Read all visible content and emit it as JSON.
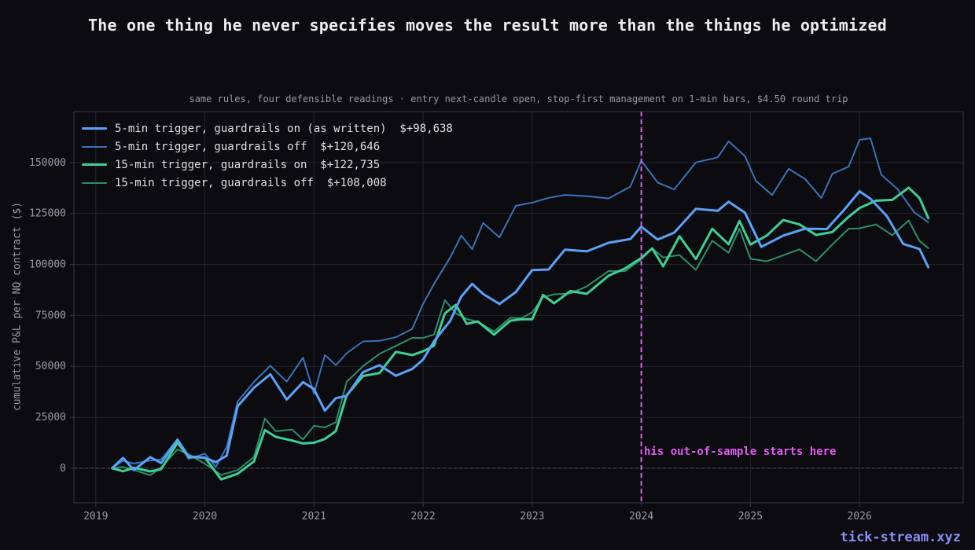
{
  "title": "The one thing he never specifies moves the result more than the things he optimized",
  "watermark": "tick-stream.xyz",
  "colors": {
    "background": "#0b0b10",
    "grid": "#24242c",
    "axis": "#3a3a44",
    "tick_text": "#9a9aa6",
    "annotation": "#e25cf2",
    "zero_line": "#4a4a55"
  },
  "chart_data": {
    "type": "line",
    "title": "The one thing he never specifies moves the result more than the things he optimized",
    "subtitle": "same rules, four defensible readings · entry next-candle open, stop-first management on 1-min bars, $4.50 round trip",
    "xlabel": "",
    "ylabel": "cumulative P&L per NQ contract ($)",
    "xlim": [
      2018.8,
      2026.95
    ],
    "ylim": [
      -17000,
      175000
    ],
    "x_ticks": [
      "2019",
      "2020",
      "2021",
      "2022",
      "2023",
      "2024",
      "2025",
      "2026"
    ],
    "x_tick_values": [
      2019,
      2020,
      2021,
      2022,
      2023,
      2024,
      2025,
      2026
    ],
    "y_ticks": [
      "0",
      "25000",
      "50000",
      "75000",
      "100000",
      "125000",
      "150000"
    ],
    "y_tick_values": [
      0,
      25000,
      50000,
      75000,
      100000,
      125000,
      150000
    ],
    "grid": true,
    "legend_position": "top-left",
    "annotation": {
      "x": 2024.0,
      "text": "his out-of-sample starts here",
      "color": "#e25cf2"
    },
    "series": [
      {
        "name": "5-min trigger, guardrails on (as written)  $+98,638",
        "color": "#5aa2f8",
        "width": 3,
        "x": [
          2019.15,
          2019.25,
          2019.35,
          2019.5,
          2019.6,
          2019.75,
          2019.85,
          2020.0,
          2020.1,
          2020.2,
          2020.3,
          2020.45,
          2020.6,
          2020.75,
          2020.9,
          2021.0,
          2021.1,
          2021.2,
          2021.3,
          2021.45,
          2021.6,
          2021.75,
          2021.9,
          2022.0,
          2022.1,
          2022.25,
          2022.35,
          2022.45,
          2022.55,
          2022.7,
          2022.85,
          2023.0,
          2023.15,
          2023.3,
          2023.5,
          2023.7,
          2023.9,
          2024.0,
          2024.15,
          2024.3,
          2024.5,
          2024.7,
          2024.8,
          2024.95,
          2025.1,
          2025.3,
          2025.5,
          2025.7,
          2025.85,
          2026.0,
          2026.1,
          2026.25,
          2026.4,
          2026.55,
          2026.63
        ],
        "values": [
          0,
          4000,
          1000,
          3000,
          5000,
          12000,
          7000,
          5000,
          2000,
          8000,
          28000,
          42000,
          44000,
          35000,
          42000,
          38000,
          30000,
          32000,
          38000,
          45000,
          52000,
          45000,
          48000,
          55000,
          60000,
          75000,
          82000,
          92000,
          85000,
          80000,
          88000,
          95000,
          100000,
          105000,
          108000,
          110000,
          112000,
          120000,
          110000,
          118000,
          125000,
          128000,
          130000,
          125000,
          110000,
          112000,
          120000,
          115000,
          128000,
          135000,
          132000,
          125000,
          108000,
          110000,
          98638
        ]
      },
      {
        "name": "5-min trigger, guardrails off  $+120,646",
        "color": "#3a73b8",
        "width": 2,
        "x": [
          2019.15,
          2019.25,
          2019.35,
          2019.5,
          2019.6,
          2019.75,
          2019.85,
          2020.0,
          2020.1,
          2020.2,
          2020.3,
          2020.45,
          2020.6,
          2020.75,
          2020.9,
          2021.0,
          2021.1,
          2021.2,
          2021.3,
          2021.45,
          2021.6,
          2021.75,
          2021.9,
          2022.0,
          2022.1,
          2022.25,
          2022.35,
          2022.45,
          2022.55,
          2022.7,
          2022.85,
          2023.0,
          2023.15,
          2023.3,
          2023.5,
          2023.7,
          2023.9,
          2024.0,
          2024.15,
          2024.3,
          2024.5,
          2024.7,
          2024.8,
          2024.95,
          2025.05,
          2025.2,
          2025.35,
          2025.5,
          2025.65,
          2025.75,
          2025.9,
          2026.0,
          2026.1,
          2026.2,
          2026.35,
          2026.5,
          2026.63
        ],
        "values": [
          0,
          5000,
          2000,
          3000,
          6000,
          12000,
          7000,
          5000,
          2000,
          10000,
          32000,
          44000,
          48000,
          45000,
          52000,
          38000,
          55000,
          50000,
          58000,
          60000,
          65000,
          62000,
          70000,
          80000,
          90000,
          105000,
          112000,
          110000,
          118000,
          115000,
          128000,
          130000,
          134000,
          132000,
          136000,
          130000,
          140000,
          150000,
          140000,
          138000,
          148000,
          155000,
          158000,
          155000,
          140000,
          134000,
          148000,
          140000,
          135000,
          142000,
          150000,
          160000,
          162000,
          145000,
          135000,
          128000,
          120646
        ]
      },
      {
        "name": "15-min trigger, guardrails on  $+122,735",
        "color": "#3ecf94",
        "width": 3,
        "x": [
          2019.15,
          2019.25,
          2019.35,
          2019.5,
          2019.6,
          2019.75,
          2019.85,
          2020.0,
          2020.15,
          2020.3,
          2020.45,
          2020.55,
          2020.65,
          2020.8,
          2020.9,
          2021.0,
          2021.1,
          2021.2,
          2021.3,
          2021.45,
          2021.6,
          2021.75,
          2021.9,
          2022.0,
          2022.1,
          2022.2,
          2022.3,
          2022.4,
          2022.5,
          2022.65,
          2022.8,
          2022.9,
          2023.0,
          2023.1,
          2023.2,
          2023.35,
          2023.5,
          2023.7,
          2023.85,
          2024.0,
          2024.1,
          2024.2,
          2024.35,
          2024.5,
          2024.65,
          2024.8,
          2024.9,
          2025.0,
          2025.15,
          2025.3,
          2025.45,
          2025.6,
          2025.75,
          2025.9,
          2026.0,
          2026.15,
          2026.3,
          2026.45,
          2026.55,
          2026.63
        ],
        "values": [
          0,
          1000,
          -2000,
          0,
          -1000,
          12000,
          7000,
          3000,
          -3000,
          -5000,
          5000,
          18000,
          15000,
          15000,
          10000,
          15000,
          12000,
          20000,
          35000,
          45000,
          48000,
          55000,
          58000,
          55000,
          62000,
          75000,
          80000,
          72000,
          70000,
          68000,
          70000,
          75000,
          72000,
          85000,
          82000,
          85000,
          88000,
          92000,
          100000,
          102000,
          108000,
          100000,
          112000,
          105000,
          115000,
          112000,
          120000,
          110000,
          115000,
          120000,
          122000,
          112000,
          118000,
          122000,
          128000,
          132000,
          130000,
          140000,
          130000,
          122735
        ]
      },
      {
        "name": "15-min trigger, guardrails off  $+108,008",
        "color": "#2d8f6a",
        "width": 2,
        "x": [
          2019.15,
          2019.25,
          2019.35,
          2019.5,
          2019.6,
          2019.75,
          2019.85,
          2020.0,
          2020.15,
          2020.3,
          2020.45,
          2020.55,
          2020.65,
          2020.8,
          2020.9,
          2021.0,
          2021.1,
          2021.2,
          2021.3,
          2021.45,
          2021.6,
          2021.75,
          2021.9,
          2022.0,
          2022.1,
          2022.2,
          2022.3,
          2022.4,
          2022.5,
          2022.65,
          2022.8,
          2022.9,
          2023.0,
          2023.1,
          2023.2,
          2023.35,
          2023.5,
          2023.7,
          2023.85,
          2024.0,
          2024.1,
          2024.2,
          2024.35,
          2024.5,
          2024.65,
          2024.8,
          2024.9,
          2025.0,
          2025.15,
          2025.3,
          2025.45,
          2025.6,
          2025.75,
          2025.9,
          2026.0,
          2026.15,
          2026.3,
          2026.45,
          2026.55,
          2026.63
        ],
        "values": [
          0,
          2000,
          -3000,
          -1000,
          -2000,
          11000,
          6000,
          2000,
          -2000,
          -3000,
          8000,
          22000,
          20000,
          18000,
          14000,
          22000,
          18000,
          25000,
          40000,
          52000,
          55000,
          60000,
          65000,
          62000,
          68000,
          80000,
          78000,
          72000,
          72000,
          68000,
          72000,
          76000,
          74000,
          86000,
          84000,
          86000,
          90000,
          95000,
          99000,
          100000,
          110000,
          102000,
          105000,
          98000,
          110000,
          108000,
          115000,
          105000,
          100000,
          105000,
          108000,
          100000,
          112000,
          115000,
          120000,
          118000,
          115000,
          122000,
          110000,
          108008
        ]
      }
    ]
  }
}
